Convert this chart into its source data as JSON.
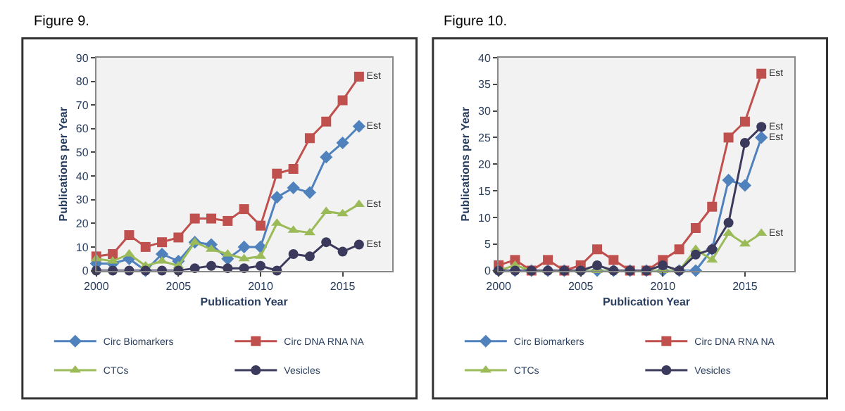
{
  "chart_data": [
    {
      "type": "line",
      "title": "Figure 9.",
      "xlabel": "Publication Year",
      "ylabel": "Publications per Year",
      "x": [
        2000,
        2001,
        2002,
        2003,
        2004,
        2005,
        2006,
        2007,
        2008,
        2009,
        2010,
        2011,
        2012,
        2013,
        2014,
        2015,
        2016
      ],
      "xlim": [
        2000,
        2018
      ],
      "xticks": [
        2000,
        2005,
        2010,
        2015
      ],
      "ylim": [
        0,
        90
      ],
      "yticks": [
        0,
        10,
        20,
        30,
        40,
        50,
        60,
        70,
        80,
        90
      ],
      "grid": false,
      "legend": "bottom",
      "line_style": "solid",
      "series": [
        {
          "name": "Circ Biomarkers",
          "color": "#4f81bd",
          "marker": "diamond",
          "values": [
            3,
            3,
            5,
            0,
            7,
            4,
            12,
            11,
            5,
            10,
            10,
            31,
            35,
            33,
            48,
            54,
            61
          ],
          "value_labels": [
            null,
            null,
            null,
            null,
            null,
            null,
            null,
            null,
            null,
            null,
            null,
            null,
            null,
            null,
            null,
            null,
            "Est"
          ]
        },
        {
          "name": "Circ DNA RNA NA",
          "color": "#c0504d",
          "marker": "square",
          "values": [
            6,
            7,
            15,
            10,
            12,
            14,
            22,
            22,
            21,
            26,
            19,
            41,
            43,
            56,
            63,
            72,
            82
          ],
          "value_labels": [
            null,
            null,
            null,
            null,
            null,
            null,
            null,
            null,
            null,
            null,
            null,
            null,
            null,
            null,
            null,
            null,
            "Est"
          ]
        },
        {
          "name": "CTCs",
          "color": "#9bbb59",
          "marker": "triangle",
          "values": [
            5,
            4,
            7,
            2,
            4,
            2,
            12,
            9,
            7,
            5,
            6,
            20,
            17,
            16,
            25,
            24,
            28
          ],
          "value_labels": [
            null,
            null,
            null,
            null,
            null,
            null,
            null,
            null,
            null,
            null,
            null,
            null,
            null,
            null,
            null,
            null,
            "Est"
          ]
        },
        {
          "name": "Vesicles",
          "color": "#3b3a5c",
          "marker": "circle",
          "values": [
            0,
            0,
            0,
            0,
            0,
            0,
            1,
            2,
            1,
            1,
            2,
            0,
            7,
            6,
            12,
            8,
            11
          ],
          "value_labels": [
            null,
            null,
            null,
            null,
            null,
            null,
            null,
            null,
            null,
            null,
            null,
            null,
            null,
            null,
            null,
            null,
            "Est"
          ]
        }
      ]
    },
    {
      "type": "line",
      "title": "Figure 10.",
      "xlabel": "Publication Year",
      "ylabel": "Publications per Year",
      "x": [
        2000,
        2001,
        2002,
        2003,
        2004,
        2005,
        2006,
        2007,
        2008,
        2009,
        2010,
        2011,
        2012,
        2013,
        2014,
        2015,
        2016
      ],
      "xlim": [
        2000,
        2018
      ],
      "xticks": [
        2000,
        2005,
        2010,
        2015
      ],
      "ylim": [
        0,
        40
      ],
      "yticks": [
        0,
        5,
        10,
        15,
        20,
        25,
        30,
        35,
        40
      ],
      "grid": false,
      "legend": "bottom",
      "line_style": "solid",
      "series": [
        {
          "name": "Circ Biomarkers",
          "color": "#4f81bd",
          "marker": "diamond",
          "values": [
            0,
            0,
            0,
            0,
            0,
            0,
            0,
            0,
            0,
            0,
            0,
            0,
            0,
            4,
            17,
            16,
            25
          ],
          "value_labels": [
            null,
            null,
            null,
            null,
            null,
            null,
            null,
            null,
            null,
            null,
            null,
            null,
            null,
            null,
            null,
            null,
            "Est"
          ]
        },
        {
          "name": "Circ DNA RNA NA",
          "color": "#c0504d",
          "marker": "square",
          "values": [
            1,
            2,
            0,
            2,
            0,
            1,
            4,
            2,
            0,
            0,
            2,
            4,
            8,
            12,
            25,
            28,
            37
          ],
          "value_labels": [
            null,
            null,
            null,
            null,
            null,
            null,
            null,
            null,
            null,
            null,
            null,
            null,
            null,
            null,
            null,
            null,
            "Est"
          ]
        },
        {
          "name": "CTCs",
          "color": "#9bbb59",
          "marker": "triangle",
          "values": [
            0,
            1,
            0,
            0,
            0,
            0,
            0,
            0,
            0,
            0,
            0,
            0,
            4,
            2,
            7,
            5,
            7
          ],
          "value_labels": [
            null,
            null,
            null,
            null,
            null,
            null,
            null,
            null,
            null,
            null,
            null,
            null,
            null,
            null,
            null,
            null,
            "Est"
          ]
        },
        {
          "name": "Vesicles",
          "color": "#3b3a5c",
          "marker": "circle",
          "values": [
            0,
            0,
            0,
            0,
            0,
            0,
            1,
            0,
            0,
            0,
            1,
            0,
            3,
            4,
            9,
            24,
            27
          ],
          "value_labels": [
            null,
            null,
            null,
            null,
            null,
            null,
            null,
            null,
            null,
            null,
            null,
            null,
            null,
            null,
            null,
            null,
            "Est"
          ]
        }
      ]
    }
  ]
}
